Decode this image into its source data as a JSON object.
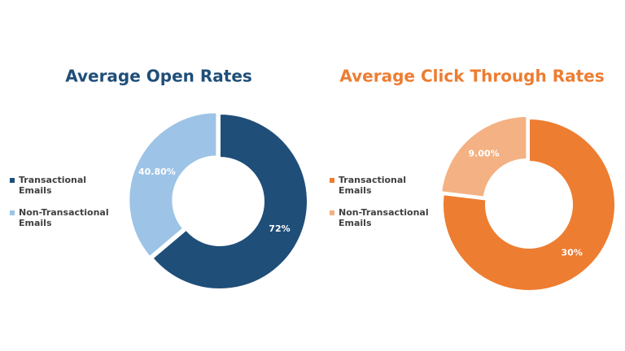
{
  "chart_data": [
    {
      "type": "donut",
      "title": "Average Open Rates",
      "title_color": "#1f4e79",
      "categories": [
        "Transactional\nEmails",
        "Non-Transactional\nEmails"
      ],
      "values": [
        72,
        40.8
      ],
      "value_labels": [
        "72%",
        "40.80%"
      ],
      "colors": [
        "#1f4e79",
        "#9dc3e6"
      ]
    },
    {
      "type": "donut",
      "title": "Average Click Through Rates",
      "title_color": "#ed7d31",
      "categories": [
        "Transactional\nEmails",
        "Non-Transactional\nEmails"
      ],
      "values": [
        30,
        9
      ],
      "value_labels": [
        "30%",
        "9.00%"
      ],
      "colors": [
        "#ed7d31",
        "#f4b183"
      ]
    }
  ]
}
